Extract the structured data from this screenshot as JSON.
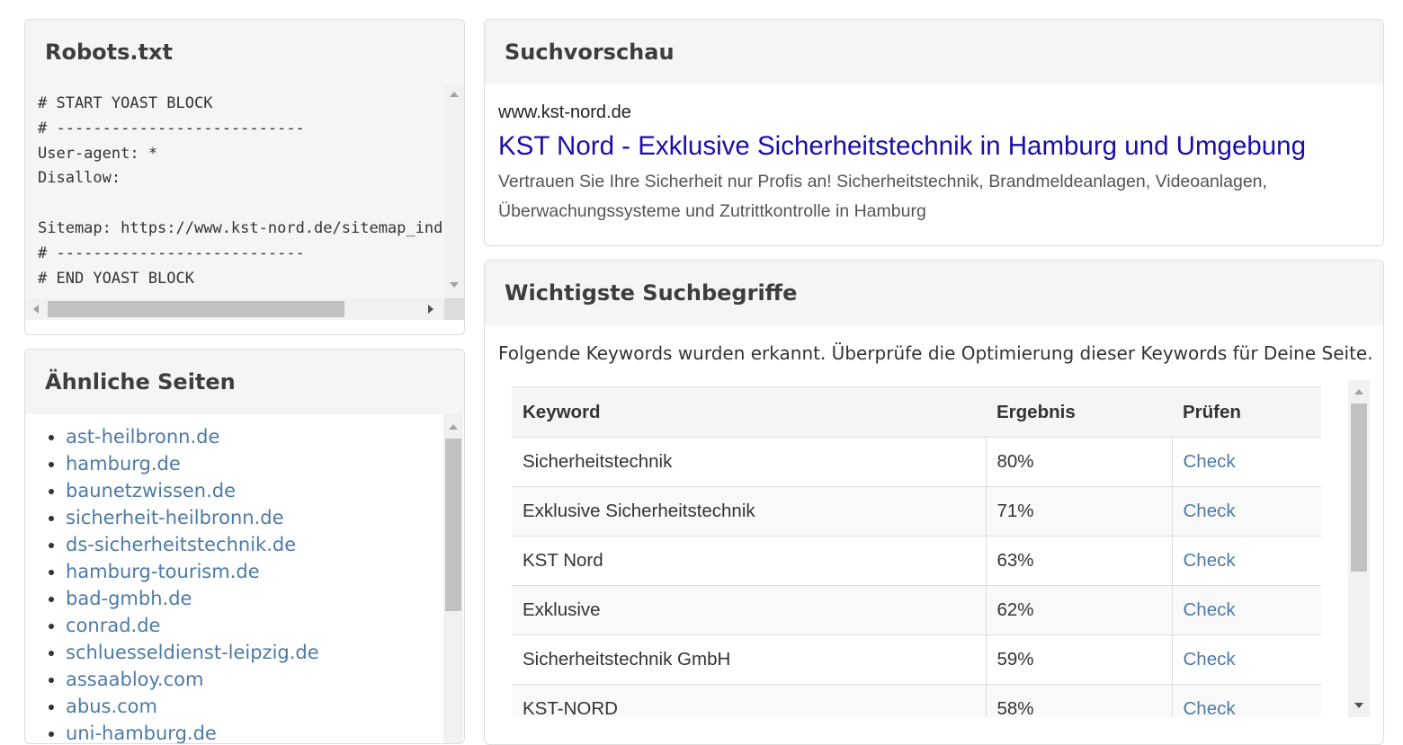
{
  "robots": {
    "title": "Robots.txt",
    "content": "# START YOAST BLOCK\n# ---------------------------\nUser-agent: *\nDisallow:\n\nSitemap: https://www.kst-nord.de/sitemap_index.xml\n# ---------------------------\n# END YOAST BLOCK"
  },
  "similar": {
    "title": "Ähnliche Seiten",
    "items": [
      "ast-heilbronn.de",
      "hamburg.de",
      "baunetzwissen.de",
      "sicherheit-heilbronn.de",
      "ds-sicherheitstechnik.de",
      "hamburg-tourism.de",
      "bad-gmbh.de",
      "conrad.de",
      "schluesseldienst-leipzig.de",
      "assaabloy.com",
      "abus.com",
      "uni-hamburg.de"
    ]
  },
  "preview": {
    "title": "Suchvorschau",
    "url": "www.kst-nord.de",
    "page_title": "KST Nord - Exklusive Sicherheitstechnik in Hamburg und Umgebung",
    "description": "Vertrauen Sie Ihre Sicherheit nur Profis an! Sicherheitstechnik, Brandmeldeanlagen, Videoanlagen, Überwachungssysteme und Zutrittkontrolle in Hamburg"
  },
  "keywords": {
    "title": "Wichtigste Suchbegriffe",
    "intro": "Folgende Keywords wurden erkannt. Überprüfe die Optimierung dieser Keywords für Deine Seite.",
    "headers": [
      "Keyword",
      "Ergebnis",
      "Prüfen"
    ],
    "rows": [
      {
        "keyword": "Sicherheitstechnik",
        "score": "80%",
        "action": "Check"
      },
      {
        "keyword": "Exklusive Sicherheitstechnik",
        "score": "71%",
        "action": "Check"
      },
      {
        "keyword": "KST Nord",
        "score": "63%",
        "action": "Check"
      },
      {
        "keyword": "Exklusive",
        "score": "62%",
        "action": "Check"
      },
      {
        "keyword": "Sicherheitstechnik GmbH",
        "score": "59%",
        "action": "Check"
      },
      {
        "keyword": "KST-NORD",
        "score": "58%",
        "action": "Check"
      }
    ]
  },
  "colors": {
    "link": "#4d7aa6",
    "serp_title": "#1a0dab",
    "panel_header_bg": "#f5f5f5"
  }
}
